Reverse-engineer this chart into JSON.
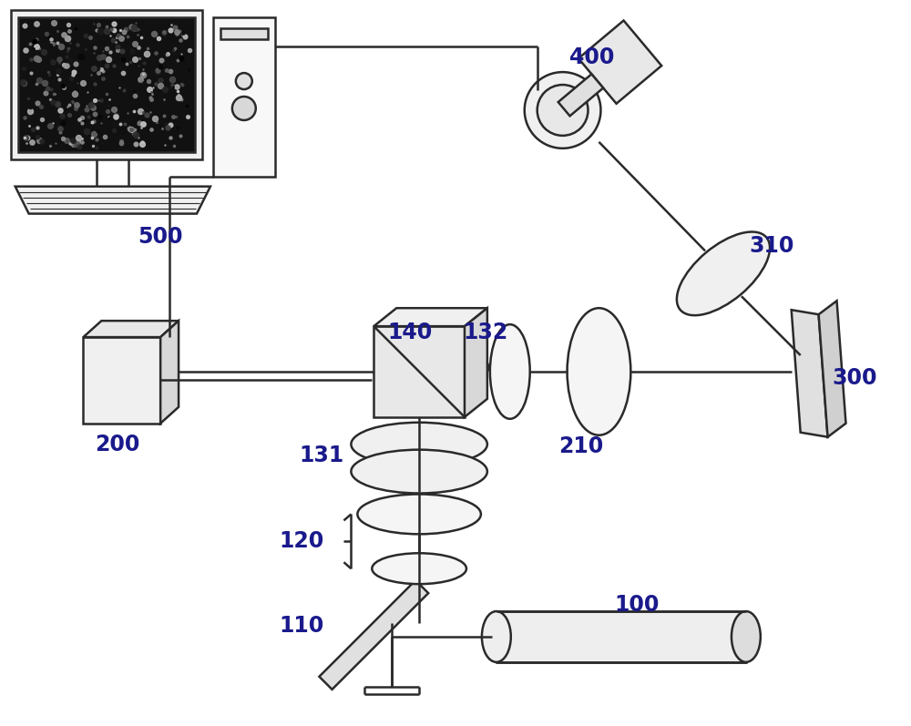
{
  "bg_color": "#ffffff",
  "line_color": "#2a2a2a",
  "label_color": "#1a1a8c",
  "label_fontsize": 17,
  "label_fontweight": "bold",
  "fig_width": 10.0,
  "fig_height": 7.97,
  "dpi": 100
}
